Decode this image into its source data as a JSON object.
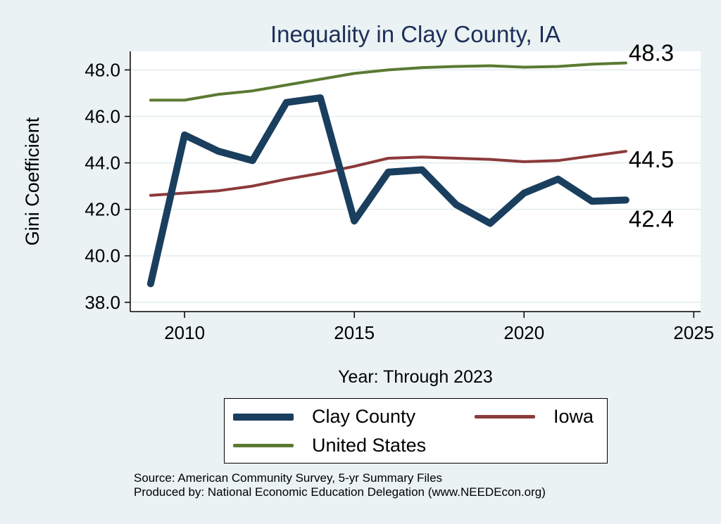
{
  "chart_data": {
    "type": "line",
    "title": "Inequality in Clay County, IA",
    "xlabel": "Year: Through 2023",
    "ylabel": "Gini Coefficient",
    "xlim": [
      2008.4,
      2025.2
    ],
    "ylim": [
      37.6,
      48.8
    ],
    "xticks": [
      2010,
      2015,
      2020,
      2025
    ],
    "yticks": [
      38.0,
      40.0,
      42.0,
      44.0,
      46.0,
      48.0
    ],
    "grid": true,
    "x": [
      2009,
      2010,
      2011,
      2012,
      2013,
      2014,
      2015,
      2016,
      2017,
      2018,
      2019,
      2020,
      2021,
      2022,
      2023
    ],
    "series": [
      {
        "name": "United States",
        "color": "#5a7a32",
        "width": 4,
        "values": [
          46.7,
          46.7,
          46.95,
          47.1,
          47.35,
          47.6,
          47.85,
          48.0,
          48.1,
          48.15,
          48.18,
          48.12,
          48.15,
          48.25,
          48.3
        ],
        "end_label": "48.3"
      },
      {
        "name": "Iowa",
        "color": "#8c3a3a",
        "width": 4,
        "values": [
          42.6,
          42.7,
          42.8,
          43.0,
          43.3,
          43.55,
          43.85,
          44.2,
          44.25,
          44.2,
          44.15,
          44.05,
          44.1,
          44.3,
          44.5
        ],
        "end_label": "44.5"
      },
      {
        "name": "Clay County",
        "color": "#1a3e5e",
        "width": 10,
        "values": [
          38.8,
          45.2,
          44.5,
          44.1,
          46.6,
          46.8,
          41.5,
          43.6,
          43.7,
          42.2,
          41.4,
          42.7,
          43.3,
          42.35,
          42.4
        ],
        "end_label": "42.4"
      }
    ]
  },
  "legend": {
    "items": [
      {
        "name": "Clay County",
        "color": "#1a3e5e"
      },
      {
        "name": "Iowa",
        "color": "#8c3a3a"
      },
      {
        "name": "United States",
        "color": "#5a7a32"
      }
    ]
  },
  "source": {
    "line1": "Source: American Community Survey, 5-yr Summary Files",
    "line2": "Produced by: National Economic Education Delegation (www.NEEDEcon.org)"
  }
}
